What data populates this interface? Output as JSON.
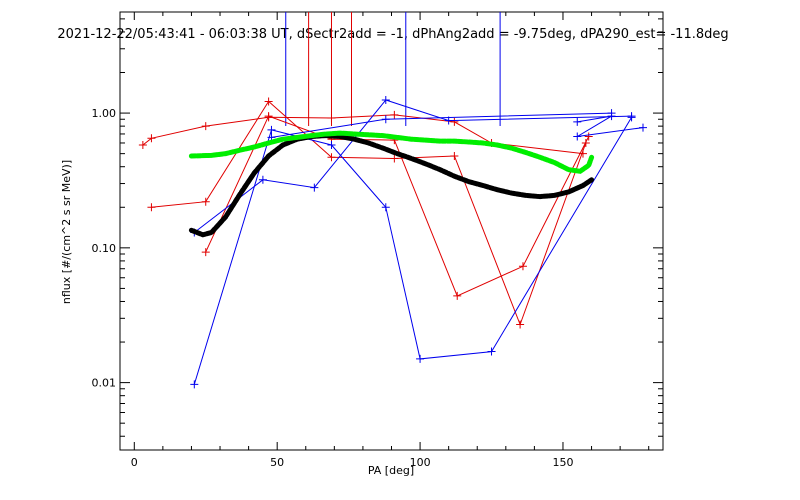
{
  "chart_data": {
    "type": "line",
    "title": "2021-12-22/05:43:41 - 06:03:38 UT, dSectr2add = -1, dPhAng2add = -9.75deg, dPA290_est= -11.8deg",
    "xlabel": "PA [deg]",
    "ylabel": "nflux [#/(cm^2 s sr MeV)]",
    "xlim": [
      -5,
      185
    ],
    "ylim_log10": [
      -2.5,
      0.75
    ],
    "y_scale": "log",
    "x_ticks": [
      0,
      50,
      100,
      150
    ],
    "x_tick_labels": [
      "0",
      "50",
      "100",
      "150"
    ],
    "y_ticks": [
      0.01,
      0.1,
      1.0
    ],
    "y_tick_labels": [
      "0.01",
      "0.10",
      "1.00"
    ],
    "grid": false,
    "colors": {
      "red": "#e00000",
      "blue": "#0000ee",
      "black": "#000000",
      "green": "#00ee00"
    },
    "red_series": [
      [
        [
          3,
          0.58
        ],
        [
          6,
          0.65
        ],
        [
          25,
          0.8
        ],
        [
          47,
          0.93
        ],
        [
          69,
          0.92
        ],
        [
          91,
          0.97
        ],
        [
          112,
          0.86
        ],
        [
          125,
          0.6
        ],
        [
          157,
          0.5
        ]
      ],
      [
        [
          6,
          0.2
        ],
        [
          25,
          0.22
        ],
        [
          47,
          1.22
        ],
        [
          69,
          0.47
        ],
        [
          91,
          0.46
        ],
        [
          112,
          0.48
        ],
        [
          135,
          0.027
        ],
        [
          158,
          0.6
        ]
      ],
      [
        [
          25,
          0.093
        ],
        [
          47,
          0.95
        ],
        [
          69,
          0.64
        ],
        [
          91,
          0.63
        ],
        [
          113,
          0.044
        ],
        [
          136,
          0.073
        ],
        [
          159,
          0.67
        ]
      ]
    ],
    "blue_series": [
      [
        [
          21,
          0.0097
        ],
        [
          48,
          0.75
        ],
        [
          69,
          0.58
        ],
        [
          88,
          0.2
        ],
        [
          100,
          0.015
        ],
        [
          125,
          0.017
        ],
        [
          174,
          0.93
        ]
      ],
      [
        [
          21,
          0.13
        ],
        [
          45,
          0.32
        ],
        [
          63,
          0.28
        ],
        [
          88,
          1.25
        ],
        [
          110,
          0.88
        ],
        [
          174,
          0.95
        ]
      ],
      [
        [
          48,
          0.66
        ],
        [
          88,
          0.9
        ],
        [
          167,
          1.0
        ]
      ],
      [
        [
          155,
          0.86
        ],
        [
          167,
          0.95
        ],
        [
          155,
          0.67
        ],
        [
          178,
          0.78
        ]
      ]
    ],
    "black_fit": [
      [
        20,
        0.135
      ],
      [
        24,
        0.125
      ],
      [
        27,
        0.13
      ],
      [
        32,
        0.17
      ],
      [
        37,
        0.25
      ],
      [
        42,
        0.36
      ],
      [
        47,
        0.48
      ],
      [
        52,
        0.58
      ],
      [
        57,
        0.64
      ],
      [
        62,
        0.67
      ],
      [
        67,
        0.68
      ],
      [
        72,
        0.67
      ],
      [
        77,
        0.64
      ],
      [
        82,
        0.6
      ],
      [
        87,
        0.55
      ],
      [
        92,
        0.5
      ],
      [
        97,
        0.46
      ],
      [
        102,
        0.42
      ],
      [
        107,
        0.38
      ],
      [
        112,
        0.34
      ],
      [
        117,
        0.31
      ],
      [
        122,
        0.29
      ],
      [
        127,
        0.27
      ],
      [
        132,
        0.255
      ],
      [
        137,
        0.245
      ],
      [
        142,
        0.24
      ],
      [
        147,
        0.245
      ],
      [
        152,
        0.26
      ],
      [
        157,
        0.29
      ],
      [
        160,
        0.32
      ]
    ],
    "green_fit": [
      [
        20,
        0.48
      ],
      [
        27,
        0.485
      ],
      [
        32,
        0.5
      ],
      [
        37,
        0.53
      ],
      [
        42,
        0.56
      ],
      [
        47,
        0.6
      ],
      [
        52,
        0.64
      ],
      [
        57,
        0.66
      ],
      [
        62,
        0.68
      ],
      [
        67,
        0.7
      ],
      [
        72,
        0.71
      ],
      [
        77,
        0.7
      ],
      [
        82,
        0.69
      ],
      [
        87,
        0.68
      ],
      [
        92,
        0.66
      ],
      [
        97,
        0.64
      ],
      [
        102,
        0.63
      ],
      [
        107,
        0.62
      ],
      [
        112,
        0.62
      ],
      [
        117,
        0.61
      ],
      [
        122,
        0.6
      ],
      [
        127,
        0.58
      ],
      [
        132,
        0.55
      ],
      [
        137,
        0.51
      ],
      [
        142,
        0.47
      ],
      [
        147,
        0.43
      ],
      [
        152,
        0.38
      ],
      [
        156,
        0.37
      ],
      [
        159,
        0.41
      ],
      [
        160,
        0.47
      ]
    ],
    "red_vertical_markers": [
      61,
      69,
      76
    ],
    "blue_vertical_markers": [
      53,
      95,
      128
    ]
  }
}
